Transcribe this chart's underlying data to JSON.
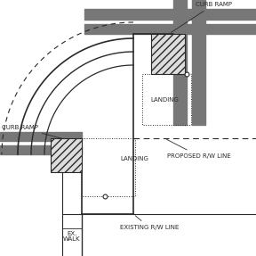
{
  "line_color": "#2a2a2a",
  "gray_dark": "#777777",
  "gray_light": "#aaaaaa",
  "figsize": [
    2.88,
    2.87
  ],
  "dpi": 100,
  "labels": {
    "curb_ramp_top": "CURB RAMP",
    "curb_ramp_left": "CURB RAMP",
    "landing_top": "LANDING",
    "landing_left": "LANDING",
    "proposed_rw": "PROPOSED R/W LINE",
    "existing_rw": "EXISTING R/W LINE",
    "ex_walk": "EX.\nWALK"
  }
}
